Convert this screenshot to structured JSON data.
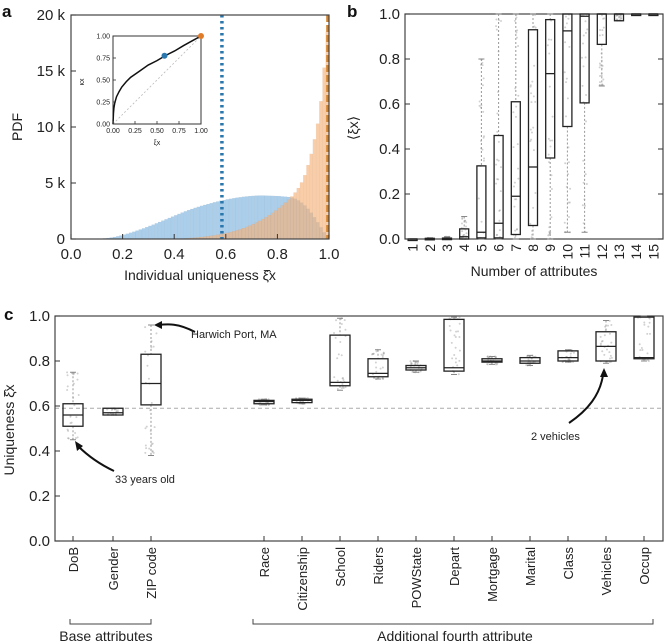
{
  "chart_data": [
    {
      "panel": "a",
      "type": "bar",
      "subtype": "overlaid-histogram",
      "xlabel": "Individual uniqueness ξ̂x",
      "ylabel": "PDF",
      "xlim": [
        0.0,
        1.0
      ],
      "ylim": [
        0,
        20000
      ],
      "xticks": [
        "0.0",
        "0.2",
        "0.4",
        "0.6",
        "0.8",
        "1.0"
      ],
      "yticks": [
        "0",
        "5 k",
        "10 k",
        "15 k",
        "20 k"
      ],
      "ytick_values": [
        0,
        5000,
        10000,
        15000,
        20000
      ],
      "xtick_values": [
        0,
        0.2,
        0.4,
        0.6,
        0.8,
        1.0
      ],
      "bin_width": 0.0125,
      "series": [
        {
          "name": "blue",
          "color": "#9cc5e6",
          "bin_starts": [
            0.1,
            0.1125,
            0.125,
            0.1375,
            0.15,
            0.1625,
            0.175,
            0.1875,
            0.2,
            0.2125,
            0.225,
            0.2375,
            0.25,
            0.2625,
            0.275,
            0.2875,
            0.3,
            0.3125,
            0.325,
            0.3375,
            0.35,
            0.3625,
            0.375,
            0.3875,
            0.4,
            0.4125,
            0.425,
            0.4375,
            0.45,
            0.4625,
            0.475,
            0.4875,
            0.5,
            0.5125,
            0.525,
            0.5375,
            0.55,
            0.5625,
            0.575,
            0.5875,
            0.6,
            0.6125,
            0.625,
            0.6375,
            0.65,
            0.6625,
            0.675,
            0.6875,
            0.7,
            0.7125,
            0.725,
            0.7375,
            0.75,
            0.7625,
            0.775,
            0.7875,
            0.8,
            0.8125,
            0.825,
            0.8375,
            0.85,
            0.8625,
            0.875,
            0.8875,
            0.9,
            0.9125,
            0.925,
            0.9375,
            0.95,
            0.9625,
            0.975,
            0.9875
          ],
          "values": [
            20,
            40,
            60,
            90,
            130,
            180,
            240,
            310,
            390,
            470,
            560,
            650,
            750,
            850,
            950,
            1060,
            1170,
            1280,
            1400,
            1520,
            1640,
            1760,
            1880,
            2000,
            2120,
            2240,
            2360,
            2470,
            2580,
            2680,
            2780,
            2870,
            2960,
            3040,
            3120,
            3200,
            3280,
            3350,
            3420,
            3480,
            3540,
            3590,
            3640,
            3690,
            3730,
            3770,
            3800,
            3830,
            3850,
            3870,
            3880,
            3880,
            3870,
            3860,
            3850,
            3840,
            3830,
            3800,
            3780,
            3750,
            3700,
            3600,
            3450,
            3250,
            3000,
            2700,
            2350,
            1950,
            1500,
            1050,
            600,
            200
          ]
        },
        {
          "name": "orange",
          "color": "#f6b27a",
          "bin_starts": [
            0.4,
            0.4125,
            0.425,
            0.4375,
            0.45,
            0.4625,
            0.475,
            0.4875,
            0.5,
            0.5125,
            0.525,
            0.5375,
            0.55,
            0.5625,
            0.575,
            0.5875,
            0.6,
            0.6125,
            0.625,
            0.6375,
            0.65,
            0.6625,
            0.675,
            0.6875,
            0.7,
            0.7125,
            0.725,
            0.7375,
            0.75,
            0.7625,
            0.775,
            0.7875,
            0.8,
            0.8125,
            0.825,
            0.8375,
            0.85,
            0.8625,
            0.875,
            0.8875,
            0.9,
            0.9125,
            0.925,
            0.9375,
            0.95,
            0.9625,
            0.975,
            0.9875
          ],
          "values": [
            20,
            30,
            45,
            60,
            80,
            100,
            125,
            150,
            180,
            210,
            250,
            290,
            330,
            380,
            430,
            490,
            550,
            620,
            700,
            780,
            870,
            970,
            1080,
            1200,
            1330,
            1470,
            1620,
            1780,
            1950,
            2130,
            2330,
            2540,
            2770,
            3000,
            3250,
            3520,
            3800,
            4150,
            4550,
            5050,
            5700,
            6600,
            7600,
            8900,
            10300,
            12300,
            15300,
            18500
          ]
        }
      ],
      "vlines": [
        {
          "x": 0.585,
          "style": "dotted",
          "color": "#2a77ad"
        },
        {
          "x": 0.995,
          "style": "dashed",
          "color": "#d4822a"
        }
      ],
      "inset": {
        "type": "line",
        "xlabel": "ξx",
        "ylabel": "κx",
        "xlim": [
          0,
          1
        ],
        "ylim": [
          0,
          1
        ],
        "xticks": [
          "0.00",
          "0.25",
          "0.50",
          "0.75",
          "1.00"
        ],
        "yticks": [
          "0.00",
          "0.25",
          "0.50",
          "0.75",
          "1.00"
        ],
        "tick_values": [
          0,
          0.25,
          0.5,
          0.75,
          1.0
        ],
        "curve": {
          "x": [
            0,
            0.005,
            0.01,
            0.02,
            0.04,
            0.07,
            0.1,
            0.15,
            0.2,
            0.3,
            0.4,
            0.5,
            0.6,
            0.7,
            0.8,
            0.9,
            1.0
          ],
          "y": [
            0,
            0.12,
            0.18,
            0.24,
            0.31,
            0.37,
            0.42,
            0.48,
            0.53,
            0.6,
            0.67,
            0.72,
            0.78,
            0.83,
            0.89,
            0.945,
            1.0
          ]
        },
        "diagonal": true,
        "points": [
          {
            "x": 0.585,
            "y": 0.775,
            "color": "#2a77ad"
          },
          {
            "x": 1.0,
            "y": 1.0,
            "color": "#e07b2a"
          }
        ]
      }
    },
    {
      "panel": "b",
      "type": "box",
      "xlabel": "Number of attributes",
      "ylabel": "⟨ξx⟩",
      "ylim": [
        0.0,
        1.0
      ],
      "yticks": [
        "0.0",
        "0.2",
        "0.4",
        "0.6",
        "0.8",
        "1.0"
      ],
      "ytick_values": [
        0,
        0.2,
        0.4,
        0.6,
        0.8,
        1.0
      ],
      "categories": [
        "1",
        "2",
        "3",
        "4",
        "5",
        "6",
        "7",
        "8",
        "9",
        "10",
        "11",
        "12",
        "13",
        "14",
        "15"
      ],
      "boxes": [
        {
          "q1": 0.0,
          "median": 0.0,
          "q3": 0.0,
          "whisker_low": 0.0,
          "whisker_high": 0.0
        },
        {
          "q1": 0.0,
          "median": 0.0,
          "q3": 0.003,
          "whisker_low": 0.0,
          "whisker_high": 0.005
        },
        {
          "q1": 0.0,
          "median": 0.0,
          "q3": 0.004,
          "whisker_low": 0.0,
          "whisker_high": 0.01
        },
        {
          "q1": 0.0,
          "median": 0.01,
          "q3": 0.045,
          "whisker_low": 0.0,
          "whisker_high": 0.1
        },
        {
          "q1": 0.005,
          "median": 0.03,
          "q3": 0.325,
          "whisker_low": 0.0,
          "whisker_high": 0.8
        },
        {
          "q1": 0.005,
          "median": 0.07,
          "q3": 0.46,
          "whisker_low": 0.0,
          "whisker_high": 1.0
        },
        {
          "q1": 0.02,
          "median": 0.19,
          "q3": 0.61,
          "whisker_low": 0.0,
          "whisker_high": 1.0
        },
        {
          "q1": 0.06,
          "median": 0.32,
          "q3": 0.93,
          "whisker_low": 0.0,
          "whisker_high": 1.0
        },
        {
          "q1": 0.36,
          "median": 0.735,
          "q3": 0.975,
          "whisker_low": 0.0,
          "whisker_high": 1.0
        },
        {
          "q1": 0.5,
          "median": 0.925,
          "q3": 1.0,
          "whisker_low": 0.03,
          "whisker_high": 1.0
        },
        {
          "q1": 0.605,
          "median": 0.99,
          "q3": 1.0,
          "whisker_low": 0.03,
          "whisker_high": 1.0
        },
        {
          "q1": 0.865,
          "median": 1.0,
          "q3": 1.0,
          "whisker_low": 0.68,
          "whisker_high": 1.0
        },
        {
          "q1": 0.97,
          "median": 1.0,
          "q3": 1.0,
          "whisker_low": 0.97,
          "whisker_high": 1.0
        },
        {
          "q1": 1.0,
          "median": 1.0,
          "q3": 1.0,
          "whisker_low": 1.0,
          "whisker_high": 1.0
        },
        {
          "q1": 1.0,
          "median": 1.0,
          "q3": 1.0,
          "whisker_low": 1.0,
          "whisker_high": 1.0
        }
      ]
    },
    {
      "panel": "c",
      "type": "box",
      "ylabel": "Uniqueness ξ̂x",
      "ylim": [
        0.0,
        1.0
      ],
      "yticks": [
        "0.0",
        "0.2",
        "0.4",
        "0.6",
        "0.8",
        "1.0"
      ],
      "ytick_values": [
        0,
        0.2,
        0.4,
        0.6,
        0.8,
        1.0
      ],
      "reference_line": 0.59,
      "categories": [
        "DoB",
        "Gender",
        "ZIP code",
        "Race",
        "Citizenship",
        "School",
        "Riders",
        "POWState",
        "Depart",
        "Mortgage",
        "Marital",
        "Class",
        "Vehicles",
        "Occup"
      ],
      "boxes": [
        {
          "q1": 0.51,
          "median": 0.56,
          "q3": 0.61,
          "whisker_low": 0.45,
          "whisker_high": 0.75
        },
        {
          "q1": 0.56,
          "median": 0.57,
          "q3": 0.59,
          "whisker_low": 0.56,
          "whisker_high": 0.59
        },
        {
          "q1": 0.605,
          "median": 0.7,
          "q3": 0.83,
          "whisker_low": 0.38,
          "whisker_high": 0.96
        },
        {
          "q1": 0.61,
          "median": 0.62,
          "q3": 0.625,
          "whisker_low": 0.605,
          "whisker_high": 0.63
        },
        {
          "q1": 0.615,
          "median": 0.625,
          "q3": 0.63,
          "whisker_low": 0.61,
          "whisker_high": 0.635
        },
        {
          "q1": 0.69,
          "median": 0.705,
          "q3": 0.915,
          "whisker_low": 0.67,
          "whisker_high": 0.99
        },
        {
          "q1": 0.73,
          "median": 0.745,
          "q3": 0.81,
          "whisker_low": 0.72,
          "whisker_high": 0.85
        },
        {
          "q1": 0.76,
          "median": 0.77,
          "q3": 0.78,
          "whisker_low": 0.75,
          "whisker_high": 0.8
        },
        {
          "q1": 0.755,
          "median": 0.77,
          "q3": 0.985,
          "whisker_low": 0.74,
          "whisker_high": 0.995
        },
        {
          "q1": 0.795,
          "median": 0.8,
          "q3": 0.81,
          "whisker_low": 0.785,
          "whisker_high": 0.82
        },
        {
          "q1": 0.79,
          "median": 0.8,
          "q3": 0.815,
          "whisker_low": 0.78,
          "whisker_high": 0.825
        },
        {
          "q1": 0.8,
          "median": 0.815,
          "q3": 0.845,
          "whisker_low": 0.795,
          "whisker_high": 0.85
        },
        {
          "q1": 0.8,
          "median": 0.865,
          "q3": 0.93,
          "whisker_low": 0.79,
          "whisker_high": 0.98
        },
        {
          "q1": 0.81,
          "median": 0.815,
          "q3": 0.995,
          "whisker_low": 0.8,
          "whisker_high": 1.0
        }
      ],
      "annotations": [
        {
          "text": "Harwich Port, MA",
          "target": "ZIP code",
          "target_value": 0.96
        },
        {
          "text": "33 years old",
          "target": "DoB",
          "target_value": 0.45
        },
        {
          "text": "2 vehicles",
          "target": "Vehicles",
          "target_value": 0.8
        }
      ],
      "groups": [
        {
          "label": "Base attributes",
          "from": "DoB",
          "to": "ZIP code"
        },
        {
          "label": "Additional fourth attribute",
          "from": "Race",
          "to": "Occup"
        }
      ]
    }
  ],
  "panels": {
    "a": "a",
    "b": "b",
    "c": "c"
  },
  "colors": {
    "blue_hist": "#9cc5e6",
    "orange_hist": "#f6b27a",
    "blue_line": "#2a77ad",
    "orange_line": "#d4822a",
    "axis": "#333333",
    "box": "#222222",
    "dots": "#9a9a9a"
  }
}
